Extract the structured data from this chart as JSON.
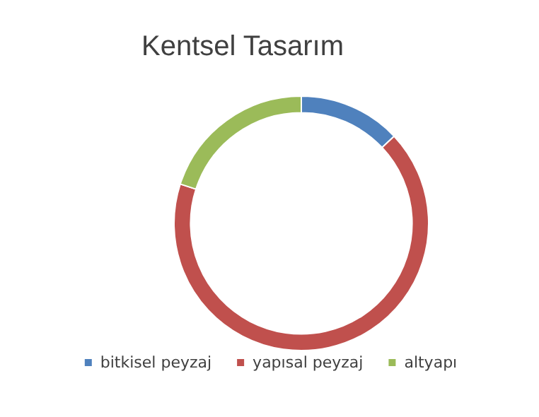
{
  "chart_data": {
    "type": "donut",
    "title": "Kentsel Tasarım",
    "categories": [
      "bitkisel peyzaj",
      "yapısal peyzaj",
      "altyapı"
    ],
    "values": [
      13,
      67,
      20
    ],
    "colors": [
      "#4f81bd",
      "#c0504d",
      "#9bbb59"
    ],
    "legend": "bottom"
  }
}
